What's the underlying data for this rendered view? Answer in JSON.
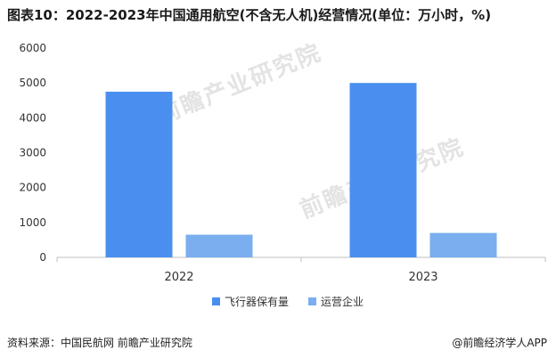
{
  "title": "图表10：2022-2023年中国通用航空(不含无人机)经营情况(单位：万小时，%)",
  "source": "资料来源：中国民航网 前瞻产业研究院",
  "brand": "@前瞻经济学人APP",
  "watermark": "前瞻产业研究院",
  "colors": {
    "series1": "#4a8ff0",
    "series2": "#7aaeef"
  },
  "chart_data": {
    "type": "bar",
    "categories": [
      "2022",
      "2023"
    ],
    "series": [
      {
        "name": "飞行器保有量",
        "values": [
          4750,
          5000
        ]
      },
      {
        "name": "运营企业",
        "values": [
          650,
          700
        ]
      }
    ],
    "ylim": [
      0,
      6000
    ],
    "yticks": [
      "0",
      "1000",
      "2000",
      "3000",
      "4000",
      "5000",
      "6000"
    ],
    "grid": false,
    "legend": "bottom-center"
  }
}
